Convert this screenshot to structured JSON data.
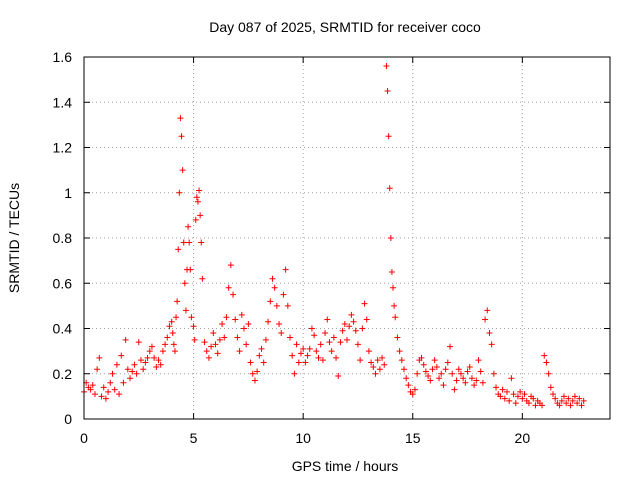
{
  "chart_data": {
    "type": "scatter",
    "title": "Day 087 of 2025, SRMTID for receiver coco",
    "xlabel": "GPS time / hours",
    "ylabel": "SRMTID / TECUs",
    "xlim": [
      0,
      24
    ],
    "ylim": [
      0,
      1.6
    ],
    "x_ticks": [
      0,
      5,
      10,
      15,
      20
    ],
    "x_tick_labels": [
      "0",
      "5",
      "10",
      "15",
      "20"
    ],
    "y_ticks": [
      0,
      0.2,
      0.4,
      0.6,
      0.8,
      1.0,
      1.2,
      1.4,
      1.6
    ],
    "y_tick_labels": [
      "0",
      "0.2",
      "0.4",
      "0.6",
      "0.8",
      "1",
      "1.2",
      "1.4",
      "1.6"
    ],
    "grid": true,
    "marker": "+",
    "color": "#ff0000",
    "series": [
      {
        "name": "SRMTID",
        "points": [
          [
            0.0,
            0.12
          ],
          [
            0.1,
            0.16
          ],
          [
            0.2,
            0.14
          ],
          [
            0.3,
            0.13
          ],
          [
            0.4,
            0.15
          ],
          [
            0.5,
            0.11
          ],
          [
            0.6,
            0.22
          ],
          [
            0.7,
            0.27
          ],
          [
            0.8,
            0.1
          ],
          [
            0.9,
            0.14
          ],
          [
            1.0,
            0.09
          ],
          [
            1.1,
            0.12
          ],
          [
            1.2,
            0.16
          ],
          [
            1.3,
            0.2
          ],
          [
            1.4,
            0.13
          ],
          [
            1.5,
            0.24
          ],
          [
            1.6,
            0.11
          ],
          [
            1.7,
            0.28
          ],
          [
            1.8,
            0.16
          ],
          [
            1.9,
            0.35
          ],
          [
            2.0,
            0.22
          ],
          [
            2.1,
            0.18
          ],
          [
            2.2,
            0.21
          ],
          [
            2.3,
            0.24
          ],
          [
            2.4,
            0.2
          ],
          [
            2.5,
            0.34
          ],
          [
            2.6,
            0.26
          ],
          [
            2.7,
            0.22
          ],
          [
            2.8,
            0.25
          ],
          [
            2.9,
            0.27
          ],
          [
            3.0,
            0.3
          ],
          [
            3.1,
            0.32
          ],
          [
            3.2,
            0.27
          ],
          [
            3.3,
            0.23
          ],
          [
            3.4,
            0.26
          ],
          [
            3.5,
            0.24
          ],
          [
            3.6,
            0.3
          ],
          [
            3.7,
            0.33
          ],
          [
            3.8,
            0.36
          ],
          [
            3.9,
            0.41
          ],
          [
            4.0,
            0.43
          ],
          [
            4.05,
            0.38
          ],
          [
            4.1,
            0.33
          ],
          [
            4.15,
            0.3
          ],
          [
            4.2,
            0.45
          ],
          [
            4.25,
            0.52
          ],
          [
            4.3,
            0.75
          ],
          [
            4.35,
            1.0
          ],
          [
            4.4,
            1.33
          ],
          [
            4.45,
            1.25
          ],
          [
            4.5,
            1.1
          ],
          [
            4.55,
            0.78
          ],
          [
            4.6,
            0.6
          ],
          [
            4.65,
            0.48
          ],
          [
            4.7,
            0.66
          ],
          [
            4.75,
            0.85
          ],
          [
            4.8,
            0.78
          ],
          [
            4.85,
            0.66
          ],
          [
            4.9,
            0.45
          ],
          [
            5.0,
            0.41
          ],
          [
            5.05,
            0.35
          ],
          [
            5.1,
            0.88
          ],
          [
            5.15,
            0.98
          ],
          [
            5.2,
            0.96
          ],
          [
            5.25,
            1.01
          ],
          [
            5.3,
            0.9
          ],
          [
            5.35,
            0.78
          ],
          [
            5.4,
            0.62
          ],
          [
            5.5,
            0.34
          ],
          [
            5.6,
            0.3
          ],
          [
            5.7,
            0.27
          ],
          [
            5.8,
            0.32
          ],
          [
            5.9,
            0.38
          ],
          [
            6.0,
            0.33
          ],
          [
            6.1,
            0.29
          ],
          [
            6.2,
            0.35
          ],
          [
            6.3,
            0.42
          ],
          [
            6.4,
            0.36
          ],
          [
            6.5,
            0.45
          ],
          [
            6.6,
            0.58
          ],
          [
            6.7,
            0.68
          ],
          [
            6.8,
            0.55
          ],
          [
            6.9,
            0.44
          ],
          [
            7.0,
            0.36
          ],
          [
            7.1,
            0.3
          ],
          [
            7.2,
            0.46
          ],
          [
            7.3,
            0.4
          ],
          [
            7.4,
            0.33
          ],
          [
            7.5,
            0.42
          ],
          [
            7.6,
            0.25
          ],
          [
            7.7,
            0.2
          ],
          [
            7.8,
            0.17
          ],
          [
            7.9,
            0.21
          ],
          [
            8.0,
            0.28
          ],
          [
            8.1,
            0.31
          ],
          [
            8.2,
            0.25
          ],
          [
            8.3,
            0.35
          ],
          [
            8.4,
            0.43
          ],
          [
            8.5,
            0.52
          ],
          [
            8.6,
            0.62
          ],
          [
            8.7,
            0.58
          ],
          [
            8.8,
            0.5
          ],
          [
            8.9,
            0.42
          ],
          [
            9.0,
            0.38
          ],
          [
            9.1,
            0.55
          ],
          [
            9.2,
            0.66
          ],
          [
            9.3,
            0.5
          ],
          [
            9.4,
            0.36
          ],
          [
            9.5,
            0.28
          ],
          [
            9.6,
            0.2
          ],
          [
            9.7,
            0.33
          ],
          [
            9.8,
            0.25
          ],
          [
            9.9,
            0.29
          ],
          [
            10.0,
            0.31
          ],
          [
            10.1,
            0.25
          ],
          [
            10.2,
            0.28
          ],
          [
            10.3,
            0.31
          ],
          [
            10.4,
            0.4
          ],
          [
            10.5,
            0.37
          ],
          [
            10.6,
            0.3
          ],
          [
            10.7,
            0.27
          ],
          [
            10.8,
            0.33
          ],
          [
            10.9,
            0.26
          ],
          [
            11.0,
            0.38
          ],
          [
            11.1,
            0.44
          ],
          [
            11.2,
            0.34
          ],
          [
            11.3,
            0.3
          ],
          [
            11.4,
            0.36
          ],
          [
            11.5,
            0.27
          ],
          [
            11.6,
            0.19
          ],
          [
            11.7,
            0.34
          ],
          [
            11.8,
            0.39
          ],
          [
            11.9,
            0.42
          ],
          [
            12.0,
            0.35
          ],
          [
            12.1,
            0.41
          ],
          [
            12.2,
            0.46
          ],
          [
            12.3,
            0.43
          ],
          [
            12.4,
            0.39
          ],
          [
            12.5,
            0.33
          ],
          [
            12.6,
            0.26
          ],
          [
            12.7,
            0.4
          ],
          [
            12.8,
            0.51
          ],
          [
            12.9,
            0.44
          ],
          [
            13.0,
            0.3
          ],
          [
            13.1,
            0.25
          ],
          [
            13.2,
            0.23
          ],
          [
            13.3,
            0.2
          ],
          [
            13.4,
            0.26
          ],
          [
            13.5,
            0.22
          ],
          [
            13.6,
            0.27
          ],
          [
            13.7,
            0.24
          ],
          [
            13.8,
            1.56
          ],
          [
            13.85,
            1.45
          ],
          [
            13.9,
            1.25
          ],
          [
            13.95,
            1.02
          ],
          [
            14.0,
            0.8
          ],
          [
            14.05,
            0.65
          ],
          [
            14.1,
            0.58
          ],
          [
            14.15,
            0.5
          ],
          [
            14.2,
            0.45
          ],
          [
            14.3,
            0.36
          ],
          [
            14.4,
            0.3
          ],
          [
            14.5,
            0.26
          ],
          [
            14.6,
            0.22
          ],
          [
            14.7,
            0.18
          ],
          [
            14.8,
            0.15
          ],
          [
            14.9,
            0.12
          ],
          [
            15.0,
            0.11
          ],
          [
            15.1,
            0.13
          ],
          [
            15.2,
            0.2
          ],
          [
            15.3,
            0.26
          ],
          [
            15.4,
            0.27
          ],
          [
            15.5,
            0.24
          ],
          [
            15.6,
            0.21
          ],
          [
            15.7,
            0.19
          ],
          [
            15.8,
            0.17
          ],
          [
            15.9,
            0.22
          ],
          [
            16.0,
            0.26
          ],
          [
            16.1,
            0.23
          ],
          [
            16.2,
            0.18
          ],
          [
            16.3,
            0.2
          ],
          [
            16.4,
            0.15
          ],
          [
            16.5,
            0.22
          ],
          [
            16.6,
            0.25
          ],
          [
            16.7,
            0.32
          ],
          [
            16.8,
            0.2
          ],
          [
            16.9,
            0.13
          ],
          [
            17.0,
            0.17
          ],
          [
            17.1,
            0.22
          ],
          [
            17.2,
            0.2
          ],
          [
            17.3,
            0.18
          ],
          [
            17.4,
            0.16
          ],
          [
            17.5,
            0.21
          ],
          [
            17.6,
            0.23
          ],
          [
            17.7,
            0.18
          ],
          [
            17.8,
            0.15
          ],
          [
            17.9,
            0.17
          ],
          [
            18.0,
            0.26
          ],
          [
            18.1,
            0.21
          ],
          [
            18.2,
            0.16
          ],
          [
            18.3,
            0.44
          ],
          [
            18.4,
            0.48
          ],
          [
            18.5,
            0.38
          ],
          [
            18.6,
            0.33
          ],
          [
            18.7,
            0.2
          ],
          [
            18.8,
            0.14
          ],
          [
            18.9,
            0.11
          ],
          [
            19.0,
            0.1
          ],
          [
            19.1,
            0.13
          ],
          [
            19.2,
            0.09
          ],
          [
            19.3,
            0.12
          ],
          [
            19.4,
            0.08
          ],
          [
            19.5,
            0.18
          ],
          [
            19.6,
            0.11
          ],
          [
            19.7,
            0.07
          ],
          [
            19.8,
            0.1
          ],
          [
            19.9,
            0.12
          ],
          [
            20.0,
            0.09
          ],
          [
            20.1,
            0.11
          ],
          [
            20.2,
            0.08
          ],
          [
            20.3,
            0.07
          ],
          [
            20.4,
            0.1
          ],
          [
            20.5,
            0.09
          ],
          [
            20.6,
            0.06
          ],
          [
            20.7,
            0.08
          ],
          [
            20.8,
            0.07
          ],
          [
            20.9,
            0.06
          ],
          [
            21.0,
            0.28
          ],
          [
            21.1,
            0.25
          ],
          [
            21.2,
            0.2
          ],
          [
            21.3,
            0.14
          ],
          [
            21.4,
            0.11
          ],
          [
            21.5,
            0.09
          ],
          [
            21.6,
            0.07
          ],
          [
            21.7,
            0.06
          ],
          [
            21.8,
            0.08
          ],
          [
            21.9,
            0.1
          ],
          [
            22.0,
            0.07
          ],
          [
            22.1,
            0.09
          ],
          [
            22.2,
            0.06
          ],
          [
            22.3,
            0.08
          ],
          [
            22.4,
            0.1
          ],
          [
            22.5,
            0.07
          ],
          [
            22.6,
            0.09
          ],
          [
            22.7,
            0.06
          ],
          [
            22.8,
            0.08
          ]
        ]
      }
    ]
  }
}
